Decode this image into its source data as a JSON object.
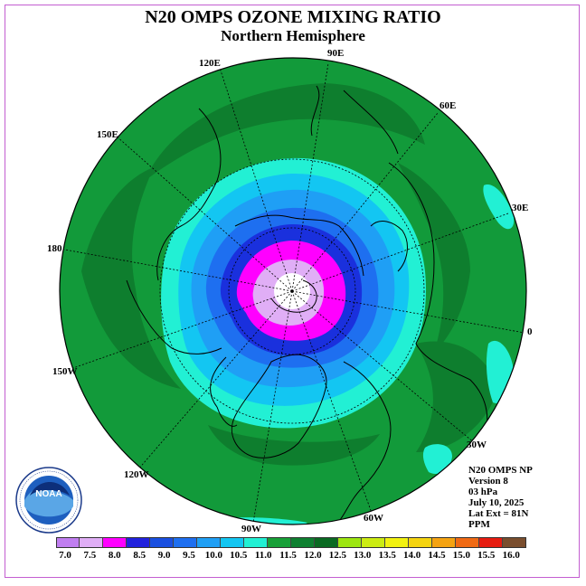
{
  "title": "N20 OMPS OZONE MIXING RATIO",
  "subtitle": "Northern Hemisphere",
  "longitude_labels": [
    "90E",
    "60E",
    "30E",
    "0",
    "30W",
    "60W",
    "90W",
    "120W",
    "150W",
    "180",
    "150E",
    "120E"
  ],
  "info": {
    "line1": "N20 OMPS NP",
    "line2": "Version 8",
    "line3": "03 hPa",
    "line4": "July 10, 2025",
    "line5": "Lat Ext = 81N",
    "line6": "PPM"
  },
  "logo": {
    "text": "NOAA",
    "ring_text": "NATIONAL OCEANIC AND ATMOSPHERIC ADMINISTRATION U.S. DEPARTMENT OF COMMERCE"
  },
  "colorbar": {
    "labels": [
      "7.0",
      "7.5",
      "8.0",
      "8.5",
      "9.0",
      "9.5",
      "10.0",
      "10.5",
      "11.0",
      "11.5",
      "12.0",
      "12.5",
      "13.0",
      "13.5",
      "14.0",
      "14.5",
      "15.0",
      "15.5",
      "16.0"
    ],
    "colors": [
      "#c07ef0",
      "#e0aef6",
      "#ff00ff",
      "#2222dd",
      "#1a4fe0",
      "#1e6ff0",
      "#1f9ff5",
      "#13c6f2",
      "#22f0d4",
      "#18a038",
      "#0e8030",
      "#0a6a22",
      "#9de610",
      "#ccec12",
      "#f2f210",
      "#f5d410",
      "#f5a312",
      "#f06a14",
      "#e61c10",
      "#7a4e2e"
    ]
  }
}
